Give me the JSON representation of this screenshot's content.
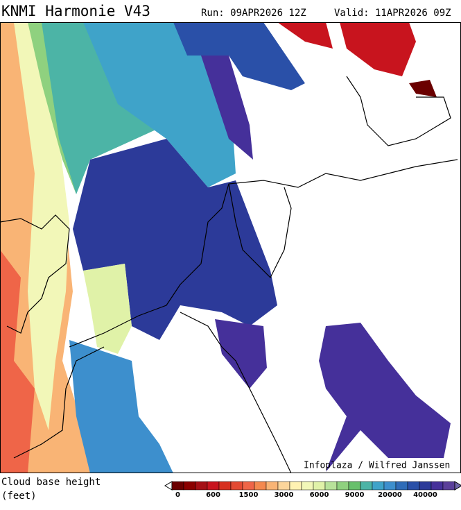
{
  "header": {
    "title": "KNMI Harmonie V43",
    "run": "Run: 09APR2026 12Z",
    "valid": "Valid: 11APR2026 09Z"
  },
  "map": {
    "credit": "Infoplaza / Wilfred Janssen"
  },
  "legend": {
    "label_lines": [
      "Cloud base height",
      "(feet)"
    ],
    "colors": [
      "#6b0000",
      "#8b0000",
      "#a50f15",
      "#c8141e",
      "#d7301f",
      "#e34a33",
      "#ef6548",
      "#f4894f",
      "#f9b475",
      "#fcd59b",
      "#fff2b2",
      "#f2f7b8",
      "#e0f2a8",
      "#b8e29a",
      "#8fd17f",
      "#68c06c",
      "#4cb4a6",
      "#3fa3c9",
      "#3d8fcd",
      "#2f6cb8",
      "#2a50a8",
      "#2c3a99",
      "#45309a",
      "#5b3f9a"
    ],
    "ticks": [
      0,
      600,
      1500,
      3000,
      6000,
      9000,
      20000,
      40000
    ]
  }
}
